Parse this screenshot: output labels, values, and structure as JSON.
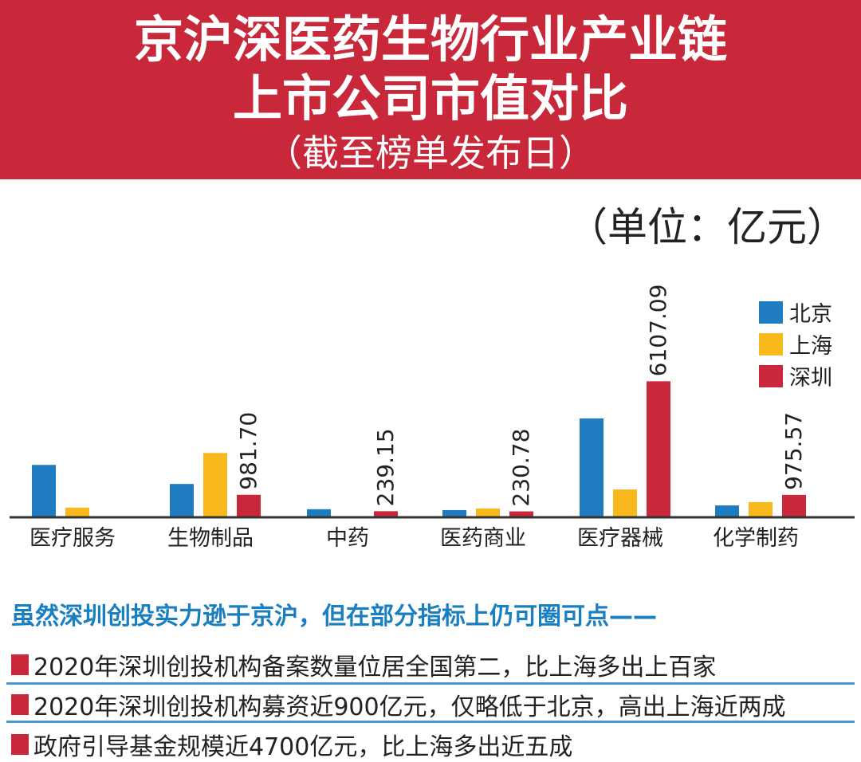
{
  "header": {
    "title_line1": "京沪深医药生物行业产业链",
    "title_line2": "上市公司市值对比",
    "title_line3": "（截至榜单发布日）"
  },
  "unit": "（单位：亿元）",
  "colors": {
    "banner": "#c8283a",
    "beijing": "#1f7cc0",
    "shanghai": "#f9b81b",
    "shenzhen": "#c8283a",
    "accent": "#1a7fc1"
  },
  "chart_data": {
    "type": "bar",
    "title": "京沪深医药生物行业产业链上市公司市值对比",
    "ylabel": "亿元",
    "ylim": [
      0,
      6500
    ],
    "grid": false,
    "legend_position": "top-right",
    "categories": [
      "医疗服务",
      "生物制品",
      "中药",
      "医药商业",
      "医疗器械",
      "化学制药"
    ],
    "series": [
      {
        "name": "北京",
        "values": [
          2330,
          1470,
          330,
          290,
          4430,
          500
        ]
      },
      {
        "name": "上海",
        "values": [
          400,
          2870,
          0,
          360,
          1220,
          650
        ]
      },
      {
        "name": "深圳",
        "values": [
          0,
          981.7,
          239.15,
          230.78,
          6107.09,
          975.57
        ]
      }
    ],
    "data_labels": [
      "",
      "981.70",
      "239.15",
      "230.78",
      "6107.09",
      "975.57"
    ]
  },
  "subtitle": "虽然深圳创投实力逊于京沪，但在部分指标上仍可圈可点——",
  "facts": [
    "2020年深圳创投机构备案数量位居全国第二，比上海多出上百家",
    "2020年深圳创投机构募资近900亿元，仅略低于北京，高出上海近两成",
    "政府引导基金规模近4700亿元，比上海多出近五成"
  ]
}
